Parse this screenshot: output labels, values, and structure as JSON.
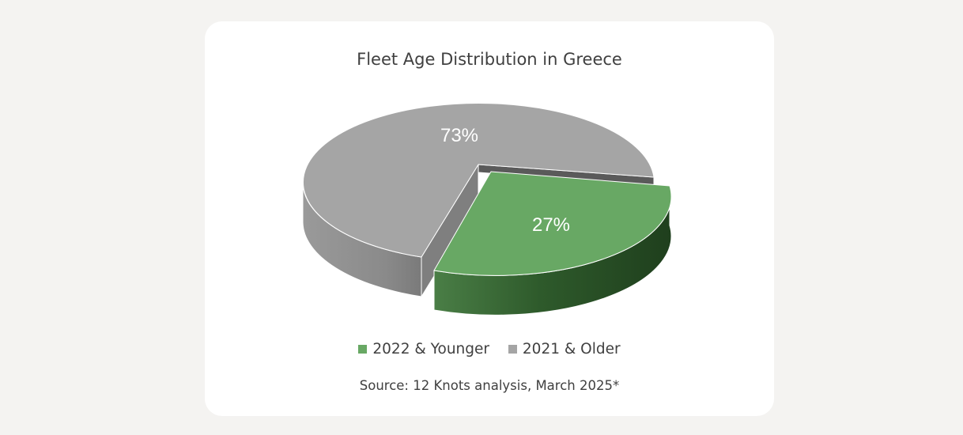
{
  "chart_data": {
    "type": "pie",
    "title": "Fleet Age Distribution in Greece",
    "slices": [
      {
        "name": "2022 & Younger",
        "value": 27,
        "label": "27%",
        "color": "#68a864",
        "side_color": "#2e5a2b"
      },
      {
        "name": "2021 & Older",
        "value": 73,
        "label": "73%",
        "color": "#a5a5a5",
        "side_color": "#8c8c8c"
      }
    ],
    "legend_position": "bottom",
    "source": "Source: 12 Knots analysis, March 2025*"
  }
}
